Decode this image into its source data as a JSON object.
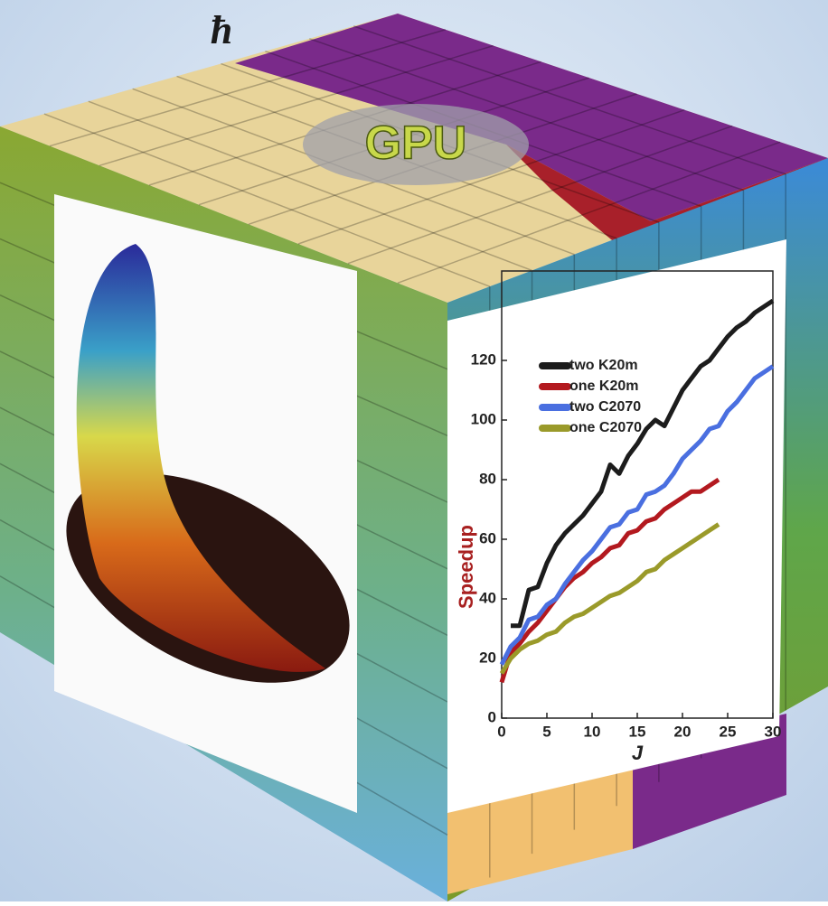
{
  "header": {
    "symbol": "ħ",
    "label": "GPU"
  },
  "chart_data": {
    "type": "line",
    "xlabel": "J",
    "ylabel": "Speedup",
    "x": [
      0,
      1,
      2,
      3,
      4,
      5,
      6,
      7,
      8,
      9,
      10,
      11,
      12,
      13,
      14,
      15,
      16,
      17,
      18,
      19,
      20,
      21,
      22,
      23,
      24,
      25,
      26,
      27,
      28,
      29,
      30
    ],
    "xlim": [
      0,
      30
    ],
    "xticks": [
      0,
      5,
      10,
      15,
      20,
      25,
      30
    ],
    "ylim": [
      0,
      150
    ],
    "yticks": [
      0,
      20,
      40,
      60,
      80,
      100,
      120
    ],
    "series": [
      {
        "name": "two K20m",
        "color": "#1c1c1c",
        "values": [
          null,
          31,
          31,
          43,
          44,
          52,
          58,
          62,
          65,
          68,
          72,
          76,
          85,
          82,
          88,
          92,
          97,
          100,
          98,
          104,
          110,
          114,
          118,
          120,
          124,
          128,
          131,
          133,
          136,
          138,
          140
        ]
      },
      {
        "name": "one K20m",
        "color": "#b3191f",
        "values": [
          12,
          22,
          25,
          29,
          32,
          36,
          40,
          44,
          47,
          49,
          52,
          54,
          57,
          58,
          62,
          63,
          66,
          67,
          70,
          72,
          74,
          76,
          76,
          78,
          80,
          null,
          null,
          null,
          null,
          null,
          null
        ]
      },
      {
        "name": "two C2070",
        "color": "#4a6fe0",
        "values": [
          18,
          24,
          27,
          33,
          34,
          38,
          40,
          45,
          49,
          53,
          56,
          60,
          64,
          65,
          69,
          70,
          75,
          76,
          78,
          82,
          87,
          90,
          93,
          97,
          98,
          103,
          106,
          110,
          114,
          116,
          118
        ]
      },
      {
        "name": "one C2070",
        "color": "#9a9a2a",
        "values": [
          15,
          20,
          23,
          25,
          26,
          28,
          29,
          32,
          34,
          35,
          37,
          39,
          41,
          42,
          44,
          46,
          49,
          50,
          53,
          55,
          57,
          59,
          61,
          63,
          65,
          null,
          null,
          null,
          null,
          null,
          null
        ]
      }
    ]
  }
}
